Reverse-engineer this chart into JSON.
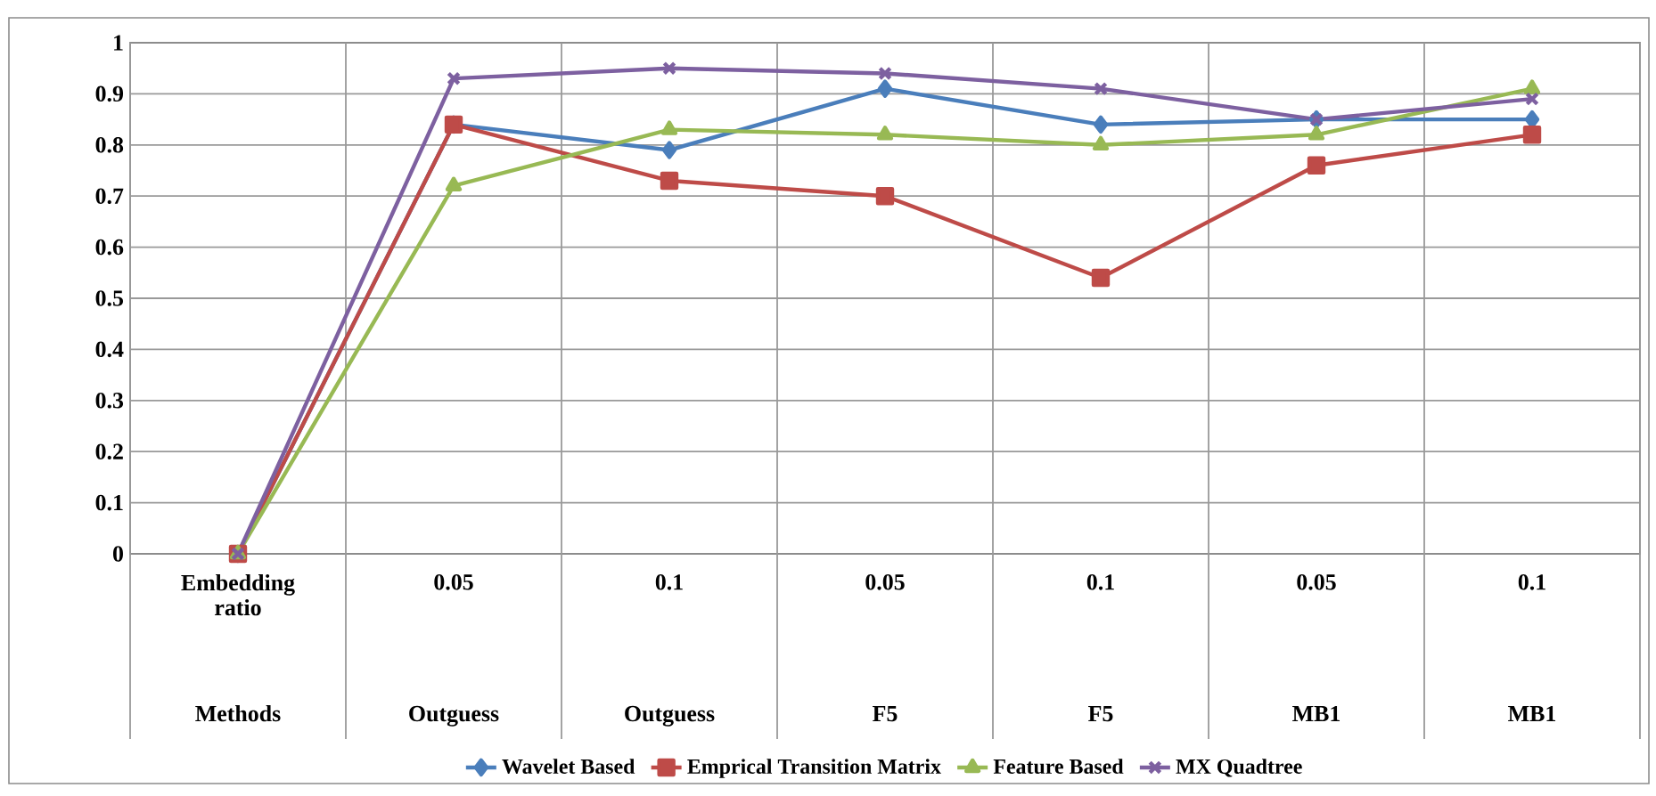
{
  "chart_data": {
    "type": "line",
    "categories": [
      "Embedding ratio",
      "0.05",
      "0.1",
      "0.05",
      "0.1",
      "0.05",
      "0.1"
    ],
    "annotations": [
      "Methods",
      "Outguess",
      "Outguess",
      "F5",
      "F5",
      "MB1",
      "MB1"
    ],
    "ylim": [
      0,
      1
    ],
    "yticks": [
      0,
      {
        "value": 0.1,
        "label": "0.1"
      },
      {
        "value": 0.2,
        "label": "0.2"
      },
      {
        "value": 0.3,
        "label": "0.3"
      },
      {
        "value": 0.4,
        "label": "0.4"
      },
      {
        "value": 0.5,
        "label": "0.5"
      },
      {
        "value": 0.6,
        "label": "0.6"
      },
      {
        "value": 0.7,
        "label": "0.7"
      },
      {
        "value": 0.8,
        "label": "0.8"
      },
      {
        "value": 0.9,
        "label": "0.9"
      },
      1
    ],
    "grid": true,
    "legend": "bottom",
    "line_style": "solid",
    "series": [
      {
        "name": "Wavelet Based",
        "color": "#4a7ebb",
        "marker": "diamond",
        "values": [
          0,
          0.84,
          0.79,
          0.91,
          0.84,
          0.85,
          0.85
        ]
      },
      {
        "name": "Emprical Transition Matrix",
        "color": "#be4b48",
        "marker": "square",
        "values": [
          0,
          0.84,
          0.73,
          0.7,
          0.54,
          0.76,
          0.82
        ]
      },
      {
        "name": "Feature Based",
        "color": "#98b954",
        "marker": "triangle",
        "values": [
          0,
          0.72,
          0.83,
          0.82,
          0.8,
          0.82,
          0.91
        ]
      },
      {
        "name": "MX Quadtree",
        "color": "#7d60a0",
        "marker": "cross",
        "values": [
          0,
          0.93,
          0.95,
          0.94,
          0.91,
          0.85,
          0.89
        ]
      }
    ]
  }
}
